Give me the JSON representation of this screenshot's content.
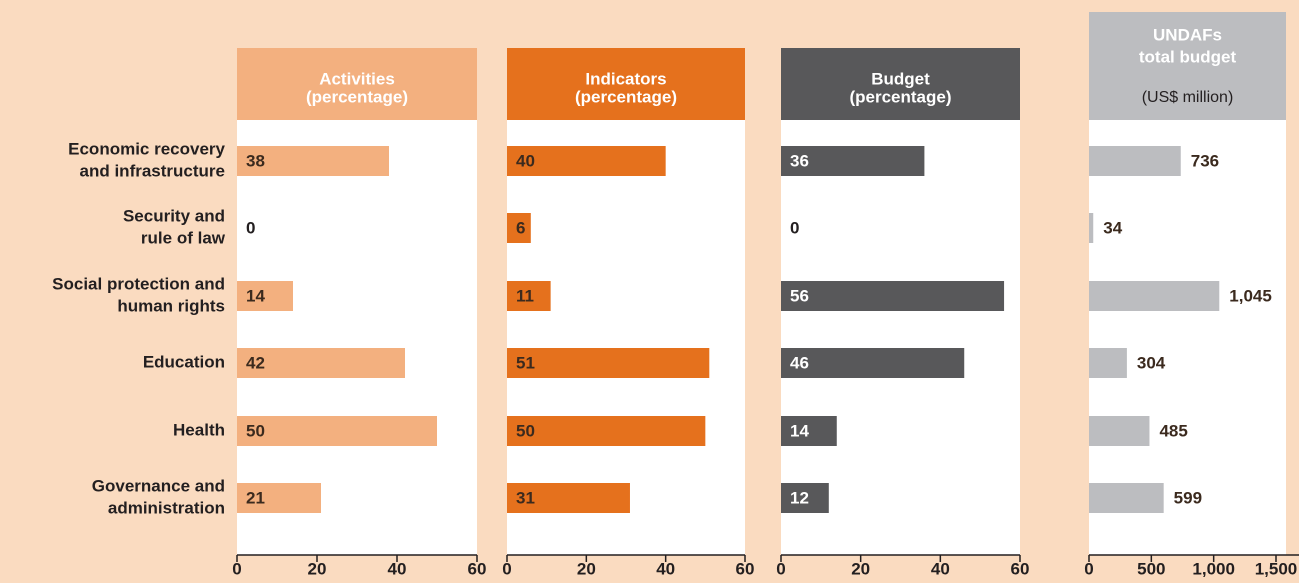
{
  "chart_data": {
    "type": "bar",
    "orientation": "horizontal",
    "categories": [
      [
        "Economic recovery",
        "and infrastructure"
      ],
      [
        "Security and",
        "rule of law"
      ],
      [
        "Social protection and",
        "human rights"
      ],
      [
        "Education"
      ],
      [
        "Health"
      ],
      [
        "Governance and",
        "administration"
      ]
    ],
    "panels": [
      {
        "title": [
          "Activities",
          "(percentage)"
        ],
        "color": "#f3b07f",
        "values": [
          38,
          0,
          14,
          42,
          50,
          21
        ],
        "xlim": [
          0,
          60
        ],
        "xticks": [
          0,
          20,
          40,
          60
        ]
      },
      {
        "title": [
          "Indicators",
          "(percentage)"
        ],
        "color": "#e5711d",
        "values": [
          40,
          6,
          11,
          51,
          50,
          31
        ],
        "xlim": [
          0,
          60
        ],
        "xticks": [
          0,
          20,
          40,
          60
        ]
      },
      {
        "title": [
          "Budget",
          "(percentage)"
        ],
        "color": "#58585a",
        "values": [
          36,
          0,
          56,
          46,
          14,
          12
        ],
        "xlim": [
          0,
          60
        ],
        "xticks": [
          0,
          20,
          40,
          60
        ]
      },
      {
        "title": [
          "UNDAFs",
          "total budget"
        ],
        "subtitle": "(US$ million)",
        "color": "#bcbdc0",
        "values": [
          736,
          34,
          1045,
          304,
          485,
          599
        ],
        "value_labels": [
          "736",
          "34",
          "1,045",
          "304",
          "485",
          "599"
        ],
        "xlim": [
          0,
          1500
        ],
        "xticks": [
          0,
          500,
          {
            "value": 1000,
            "label": "1,000"
          },
          {
            "value": 1500,
            "label": "1,500"
          }
        ]
      }
    ]
  }
}
